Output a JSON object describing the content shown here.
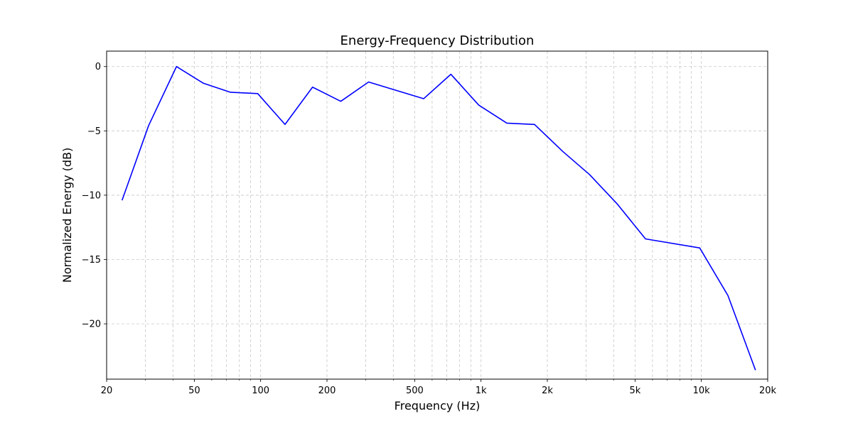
{
  "chart_data": {
    "type": "line",
    "title": "Energy-Frequency Distribution",
    "xlabel": "Frequency (Hz)",
    "ylabel": "Normalized Energy (dB)",
    "x_scale": "log",
    "xlim": [
      20,
      20000
    ],
    "ylim": [
      -24.3,
      1.2
    ],
    "x_ticks": [
      {
        "value": 20,
        "label": "20"
      },
      {
        "value": 50,
        "label": "50"
      },
      {
        "value": 100,
        "label": "100"
      },
      {
        "value": 200,
        "label": "200"
      },
      {
        "value": 500,
        "label": "500"
      },
      {
        "value": 1000,
        "label": "1k"
      },
      {
        "value": 2000,
        "label": "2k"
      },
      {
        "value": 5000,
        "label": "5k"
      },
      {
        "value": 10000,
        "label": "10k"
      },
      {
        "value": 20000,
        "label": "20k"
      }
    ],
    "y_ticks": [
      {
        "value": 0,
        "label": "0"
      },
      {
        "value": -5,
        "label": "−5"
      },
      {
        "value": -10,
        "label": "−10"
      },
      {
        "value": -15,
        "label": "−15"
      },
      {
        "value": -20,
        "label": "−20"
      }
    ],
    "grid": true,
    "grid_style": "dashed",
    "series": [
      {
        "color": "#0000ff",
        "x": [
          23.5,
          31,
          41.5,
          55,
          73,
          97,
          129,
          172,
          231,
          309,
          549,
          730,
          977,
          1310,
          1750,
          2350,
          3110,
          4160,
          5580,
          9830,
          13200,
          17600
        ],
        "y": [
          -10.4,
          -4.6,
          0.0,
          -1.3,
          -2.0,
          -2.1,
          -4.5,
          -1.6,
          -2.7,
          -1.2,
          -2.5,
          -0.6,
          -3.0,
          -4.4,
          -4.5,
          -6.6,
          -8.4,
          -10.7,
          -13.4,
          -14.1,
          -17.8,
          -23.6
        ]
      }
    ]
  }
}
